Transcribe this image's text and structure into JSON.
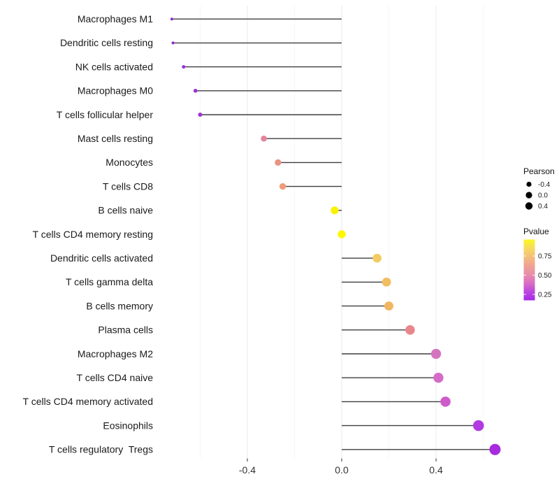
{
  "figure": {
    "background": "#ffffff",
    "description": "Lollipop chart of Pearson correlation per immune cell type, dot size = Pearson, dot color = Pvalue"
  },
  "legend": {
    "size": {
      "title": "Pearson",
      "dot_color": "#000000",
      "entries": [
        {
          "label": "-0.4",
          "value": -0.4
        },
        {
          "label": "0.0",
          "value": 0.0
        },
        {
          "label": "0.4",
          "value": 0.4
        }
      ]
    },
    "color": {
      "title": "Pvalue",
      "ticks": [
        {
          "label": "0.75",
          "value": 0.75
        },
        {
          "label": "0.50",
          "value": 0.5
        },
        {
          "label": "0.25",
          "value": 0.25
        }
      ],
      "gradient_top_to_bottom": [
        "#FBF920",
        "#F7DA60",
        "#F3BE7C",
        "#EFA295",
        "#E88FA9",
        "#D96FC4",
        "#BC47DE",
        "#A42AE8"
      ],
      "range_top": 0.97,
      "range_bottom": 0.18
    }
  },
  "chart_data": {
    "type": "scatter",
    "variant": "lollipop",
    "title": "",
    "xlabel": "",
    "ylabel": "",
    "xlim": [
      -0.73,
      0.72
    ],
    "baseline": 0,
    "grid": {
      "major_color": "#ebebeb",
      "minor_color": "#f5f5f5"
    },
    "stick_color": "#3f3f3f",
    "size_encoding": "Pearson",
    "color_encoding": "Pvalue",
    "xticks": [
      {
        "label": "-0.4",
        "value": -0.4
      },
      {
        "label": "0.0",
        "value": 0.0
      },
      {
        "label": "0.4",
        "value": 0.4
      }
    ],
    "xminor": [
      -0.6,
      -0.2,
      0.2,
      0.6
    ],
    "points": [
      {
        "category": "Macrophages M1",
        "pearson": -0.72,
        "pvalue": 0.07,
        "color": "#8F28CE"
      },
      {
        "category": "Dendritic cells resting",
        "pearson": -0.715,
        "pvalue": 0.08,
        "color": "#9129CE"
      },
      {
        "category": "NK cells activated",
        "pearson": -0.67,
        "pvalue": 0.12,
        "color": "#9A30D8"
      },
      {
        "category": "Macrophages M0",
        "pearson": -0.62,
        "pvalue": 0.13,
        "color": "#9C33D6"
      },
      {
        "category": "T cells follicular helper",
        "pearson": -0.6,
        "pvalue": 0.13,
        "color": "#9C33D1"
      },
      {
        "category": "Mast cells resting",
        "pearson": -0.33,
        "pvalue": 0.45,
        "color": "#E2849B"
      },
      {
        "category": "Monocytes",
        "pearson": -0.27,
        "pvalue": 0.54,
        "color": "#EB9283"
      },
      {
        "category": "T cells CD8",
        "pearson": -0.25,
        "pvalue": 0.58,
        "color": "#EE9D78"
      },
      {
        "category": "B cells naive",
        "pearson": -0.03,
        "pvalue": 0.93,
        "color": "#FAF200"
      },
      {
        "category": "T cells CD4 memory resting",
        "pearson": 0.0,
        "pvalue": 0.97,
        "color": "#FDF701"
      },
      {
        "category": "Dendritic cells activated",
        "pearson": 0.15,
        "pvalue": 0.78,
        "color": "#F2CB63"
      },
      {
        "category": "T cells gamma delta",
        "pearson": 0.19,
        "pvalue": 0.72,
        "color": "#F2BD60"
      },
      {
        "category": "B cells memory",
        "pearson": 0.2,
        "pvalue": 0.7,
        "color": "#F2B562"
      },
      {
        "category": "Plasma cells",
        "pearson": 0.29,
        "pvalue": 0.51,
        "color": "#E8868B"
      },
      {
        "category": "Macrophages M2",
        "pearson": 0.4,
        "pvalue": 0.37,
        "color": "#D573BE"
      },
      {
        "category": "T cells CD4 naive",
        "pearson": 0.41,
        "pvalue": 0.35,
        "color": "#D56BC6"
      },
      {
        "category": "T cells CD4 memory activated",
        "pearson": 0.44,
        "pvalue": 0.31,
        "color": "#CE5BCA"
      },
      {
        "category": "Eosinophils",
        "pearson": 0.58,
        "pvalue": 0.21,
        "color": "#B13BE0"
      },
      {
        "category": "T cells regulatory  Tregs",
        "pearson": 0.65,
        "pvalue": 0.17,
        "color": "#A82BDE"
      }
    ]
  }
}
